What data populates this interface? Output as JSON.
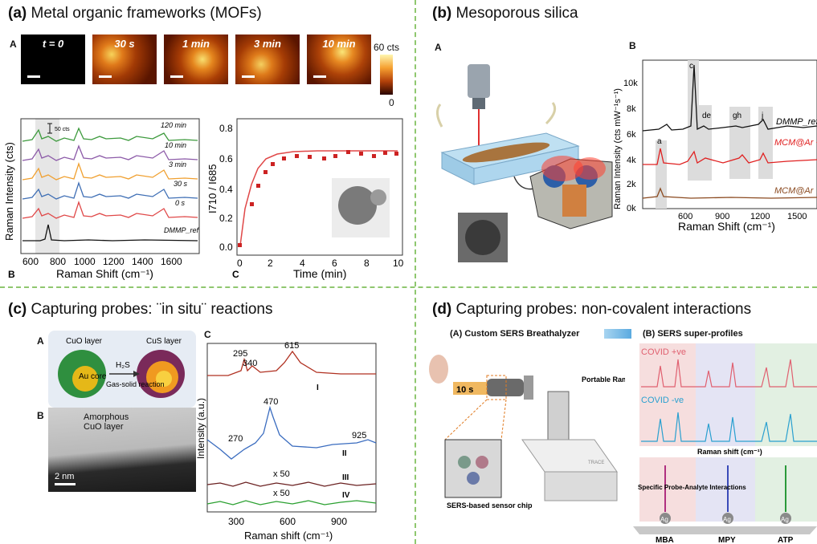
{
  "panel_a": {
    "title_letter": "(a)",
    "title_text": "Metal organic frameworks (MOFs)",
    "sub_A": "A",
    "sub_B": "B",
    "sub_C": "C",
    "frames": [
      "t = 0",
      "30 s",
      "1 min",
      "3 min",
      "10 min"
    ],
    "colorbar_max": "60 cts",
    "colorbar_min": "0",
    "spectra_labels": [
      "120 min",
      "10 min",
      "3 min",
      "30 s",
      "0 s",
      "DMMP_ref"
    ],
    "scale_label": "50 cts",
    "spectra_xlabel": "Raman Shift (cm⁻¹)",
    "spectra_ylabel": "Raman Intensity (cts)",
    "spectra_xticks": [
      "600",
      "800",
      "1000",
      "1200",
      "1400",
      "1600"
    ],
    "kinetic_xlabel": "Time (min)",
    "kinetic_ylabel": "I710 / I685",
    "kinetic_xticks": [
      "0",
      "2",
      "4",
      "6",
      "8",
      "10"
    ],
    "kinetic_yticks": [
      "0.0",
      "0.2",
      "0.4",
      "0.6",
      "0.8"
    ]
  },
  "panel_b": {
    "title_letter": "(b)",
    "title_text": "Mesoporous silica",
    "sub_A": "A",
    "sub_B": "B",
    "peak_labels": [
      "c",
      "de",
      "gh",
      "j",
      "a"
    ],
    "trace_labels": [
      "DMMP_ref",
      "MCM@Ar + DMMP",
      "MCM@Ar"
    ],
    "xlabel": "Raman Shift (cm⁻¹)",
    "ylabel": "Raman Intensity (cts mW⁻¹s⁻¹)",
    "xticks": [
      "600",
      "900",
      "1200",
      "1500"
    ],
    "yticks": [
      "0k",
      "2k",
      "4k",
      "6k",
      "8k",
      "10k"
    ]
  },
  "panel_c": {
    "title_letter": "(c)",
    "title_text": "Capturing probes: ¨in situ¨ reactions",
    "sub_A": "A",
    "sub_B": "B",
    "sub_C": "C",
    "cuo_layer": "CuO layer",
    "au_core": "Au core",
    "cus_layer": "CuS layer",
    "reagent": "H₂S",
    "reaction": "Gas-solid reaction",
    "amorphous": "Amorphous CuO layer",
    "scale": "2 nm",
    "peaks_I": [
      "295",
      "340",
      "615"
    ],
    "peaks_II": [
      "270",
      "470",
      "925"
    ],
    "roman": [
      "I",
      "II",
      "III",
      "IV"
    ],
    "mult": [
      "x 50",
      "x 50"
    ],
    "xlabel": "Raman shift  (cm⁻¹)",
    "ylabel": "Intensity (a.u.)",
    "xticks": [
      "300",
      "600",
      "900"
    ]
  },
  "panel_d": {
    "title_letter": "(d)",
    "title_text": "Capturing probes: non-covalent interactions",
    "sub_A": "(A) Custom SERS Breathalyzer",
    "sub_B": "(B) SERS super-profiles",
    "time": "10 s",
    "spectrometer": "Portable Raman Spectrometer",
    "sensor": "SERS-based sensor chip",
    "covid_pos": "COVID +ve",
    "covid_neg": "COVID -ve",
    "xlabel": "Raman shift (cm⁻¹)",
    "probe_note": "Specific Probe-Analyte Interactions",
    "probes": [
      "MBA",
      "MPY",
      "ATP"
    ],
    "ag": "Ag",
    "device_label": "TRACE"
  }
}
